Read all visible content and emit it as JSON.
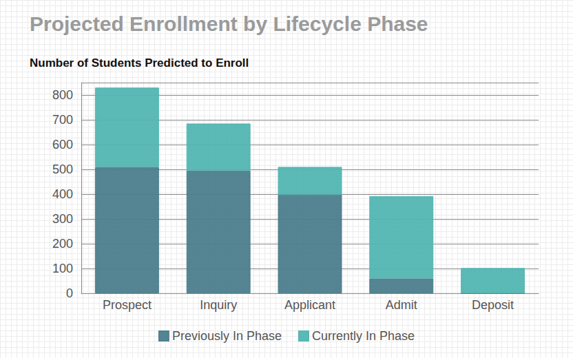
{
  "chart_data": {
    "type": "bar",
    "title": "Projected Enrollment by Lifecycle Phase",
    "subtitle": "Number of Students Predicted to Enroll",
    "categories": [
      "Prospect",
      "Inquiry",
      "Applicant",
      "Admit",
      "Deposit"
    ],
    "series": [
      {
        "name": "Previously In Phase",
        "color": "#4c7d8c",
        "values": [
          510,
          495,
          398,
          60,
          0
        ]
      },
      {
        "name": "Currently In Phase",
        "color": "#52b5b2",
        "values": [
          320,
          190,
          112,
          332,
          102
        ]
      }
    ],
    "ylim": [
      0,
      850
    ],
    "yticks": [
      0,
      100,
      200,
      300,
      400,
      500,
      600,
      700,
      800
    ],
    "grid": true,
    "stacked": true,
    "legend": "bottom"
  }
}
